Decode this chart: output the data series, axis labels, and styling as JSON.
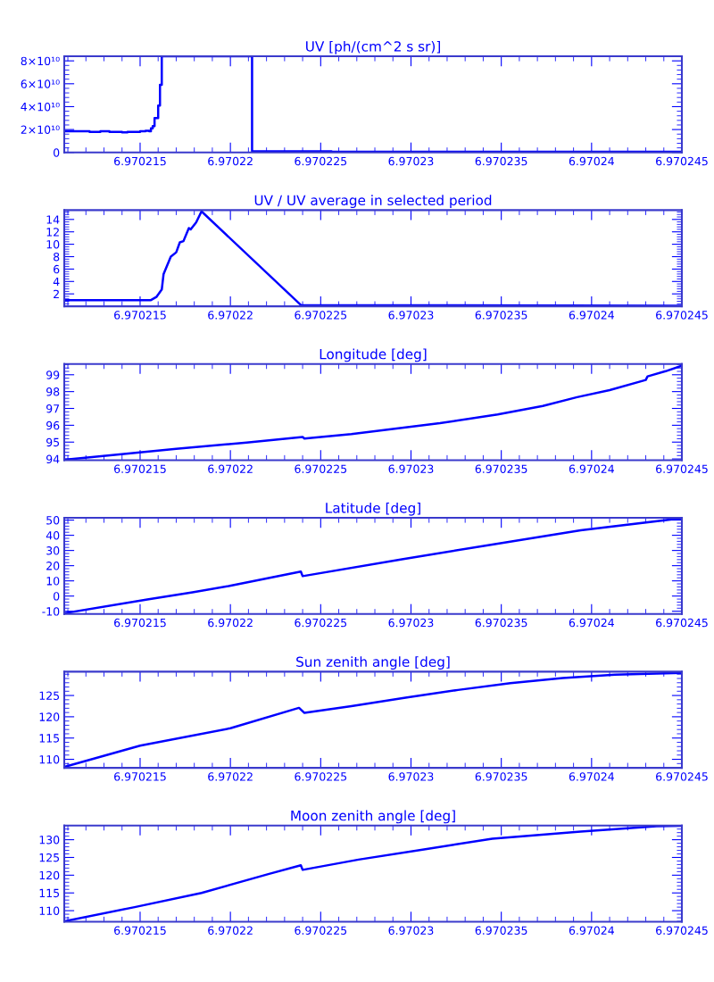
{
  "chart_data": [
    {
      "type": "step",
      "title": "UV [ph/(cm^2 s sr)]",
      "color": "#0000ff",
      "grid": false,
      "legend": false,
      "xlim": [
        6.9702108,
        6.970245
      ],
      "xticks": [
        6.970215,
        6.97022,
        6.970225,
        6.97023,
        6.970235,
        6.97024,
        6.970245
      ],
      "ylim": [
        0,
        84000000000
      ],
      "yticks": [
        0,
        {
          "value": 20000000000,
          "label": "2×10¹⁰"
        },
        {
          "value": 40000000000,
          "label": "4×10¹⁰"
        },
        {
          "value": 60000000000,
          "label": "6×10¹⁰"
        },
        {
          "value": 80000000000,
          "label": "8×10¹⁰"
        }
      ],
      "x": [
        6.9702108,
        6.9702122,
        6.9702128,
        6.9702133,
        6.970214,
        6.9702143,
        6.970215,
        6.9702153,
        6.9702155,
        6.9702156,
        6.9702157,
        6.9702158,
        6.970216,
        6.9702161,
        6.9702162,
        6.9702212,
        6.9702256,
        6.970245
      ],
      "values": [
        18500000000,
        18000000000,
        18500000000,
        18000000000,
        17500000000,
        18000000000,
        18500000000,
        19000000000,
        18500000000,
        21000000000,
        23000000000,
        30000000000,
        41000000000,
        59000000000,
        84000000000,
        1000000000,
        500000000,
        500000000
      ]
    },
    {
      "type": "line",
      "title": "UV / UV average in selected period",
      "color": "#0000ff",
      "grid": false,
      "legend": false,
      "xlim": [
        6.9702108,
        6.970245
      ],
      "xticks": [
        6.970215,
        6.97022,
        6.970225,
        6.97023,
        6.970235,
        6.97024,
        6.970245
      ],
      "ylim": [
        0,
        15.5
      ],
      "yticks": [
        2,
        4,
        6,
        8,
        10,
        12,
        14
      ],
      "x": [
        6.9702108,
        6.9702156,
        6.9702159,
        6.9702162,
        6.9702163,
        6.9702165,
        6.9702167,
        6.970217,
        6.9702172,
        6.9702174,
        6.9702177,
        6.9702178,
        6.9702181,
        6.9702183,
        6.9702184,
        6.9702239,
        6.970245
      ],
      "values": [
        1.0,
        1.0,
        1.5,
        2.7,
        5.2,
        6.6,
        8.0,
        8.7,
        10.3,
        10.5,
        12.6,
        12.4,
        13.5,
        14.7,
        15.3,
        0.2,
        0.1
      ]
    },
    {
      "type": "line",
      "title": "Longitude [deg]",
      "color": "#0000ff",
      "grid": false,
      "legend": false,
      "xlim": [
        6.9702108,
        6.970245
      ],
      "xticks": [
        6.970215,
        6.97022,
        6.970225,
        6.97023,
        6.970235,
        6.97024,
        6.970245
      ],
      "ylim": [
        93.93,
        99.64
      ],
      "yticks": [
        94,
        95,
        96,
        97,
        98,
        99
      ],
      "x": [
        6.9702108,
        6.970217,
        6.9702209,
        6.970224,
        6.9702241,
        6.9702267,
        6.9702316,
        6.9702348,
        6.9702373,
        6.9702392,
        6.970241,
        6.970243,
        6.9702431,
        6.9702441,
        6.970245
      ],
      "values": [
        93.95,
        94.6,
        94.97,
        95.3,
        95.21,
        95.48,
        96.12,
        96.64,
        97.15,
        97.67,
        98.09,
        98.69,
        98.9,
        99.21,
        99.54
      ]
    },
    {
      "type": "line",
      "title": "Latitude [deg]",
      "color": "#0000ff",
      "grid": false,
      "legend": false,
      "xlim": [
        6.9702108,
        6.970245
      ],
      "xticks": [
        6.970215,
        6.97022,
        6.970225,
        6.97023,
        6.970235,
        6.97024,
        6.970245
      ],
      "ylim": [
        -11.8,
        51.5
      ],
      "yticks": [
        -10,
        0,
        10,
        20,
        30,
        40,
        50
      ],
      "x": [
        6.9702108,
        6.9702154,
        6.9702179,
        6.9702199,
        6.9702239,
        6.970224,
        6.9702295,
        6.9702345,
        6.9702394,
        6.970245
      ],
      "values": [
        -11.3,
        -2.3,
        2.5,
        6.6,
        16.1,
        13.1,
        24.2,
        33.9,
        43.3,
        51.3
      ]
    },
    {
      "type": "line",
      "title": "Sun zenith angle [deg]",
      "color": "#0000ff",
      "grid": false,
      "legend": false,
      "xlim": [
        6.9702108,
        6.970245
      ],
      "xticks": [
        6.970215,
        6.97022,
        6.970225,
        6.97023,
        6.970235,
        6.97024,
        6.970245
      ],
      "ylim": [
        108,
        130.6
      ],
      "yticks": [
        110,
        115,
        120,
        125
      ],
      "x": [
        6.9702108,
        6.970215,
        6.97022,
        6.9702238,
        6.9702241,
        6.9702267,
        6.9702297,
        6.9702326,
        6.9702355,
        6.9702384,
        6.9702413,
        6.970245
      ],
      "values": [
        108.2,
        113.2,
        117.3,
        122.1,
        120.9,
        122.5,
        124.5,
        126.3,
        127.9,
        129.1,
        129.9,
        130.3
      ]
    },
    {
      "type": "line",
      "title": "Moon zenith angle [deg]",
      "color": "#0000ff",
      "grid": false,
      "legend": false,
      "xlim": [
        6.9702108,
        6.970245
      ],
      "xticks": [
        6.970215,
        6.97022,
        6.970225,
        6.97023,
        6.970235,
        6.97024,
        6.970245
      ],
      "ylim": [
        106.9,
        134
      ],
      "yticks": [
        110,
        115,
        120,
        125,
        130
      ],
      "x": [
        6.9702108,
        6.9702147,
        6.9702184,
        6.9702221,
        6.9702239,
        6.970224,
        6.9702271,
        6.9702308,
        6.9702345,
        6.9702394,
        6.9702436,
        6.970245
      ],
      "values": [
        107.0,
        111.0,
        115.0,
        120.3,
        122.8,
        121.5,
        124.4,
        127.3,
        130.3,
        132.3,
        133.8,
        133.9
      ]
    }
  ]
}
